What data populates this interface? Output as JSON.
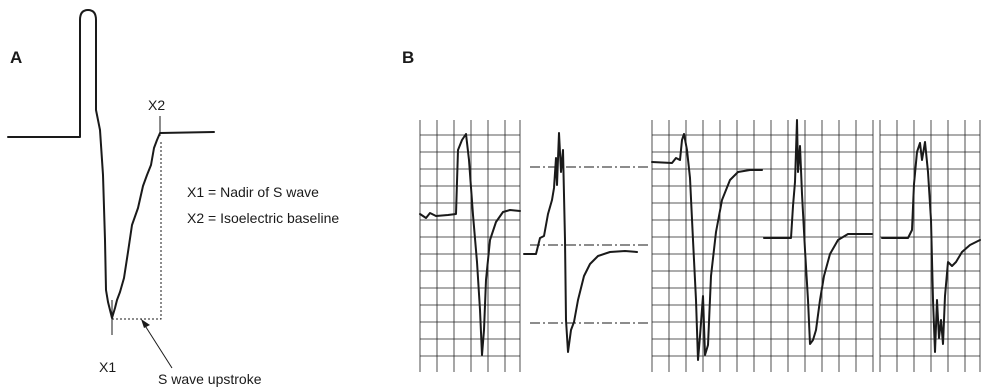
{
  "panel_a": {
    "label": "A",
    "x1_label": "X1",
    "x2_label": "X2",
    "legend_line1": "X1 = Nadir of S wave",
    "legend_line2": "X2 = Isoelectric baseline",
    "arrow_label": "S wave upstroke"
  },
  "panel_b": {
    "label": "B",
    "strip_count": 5
  }
}
